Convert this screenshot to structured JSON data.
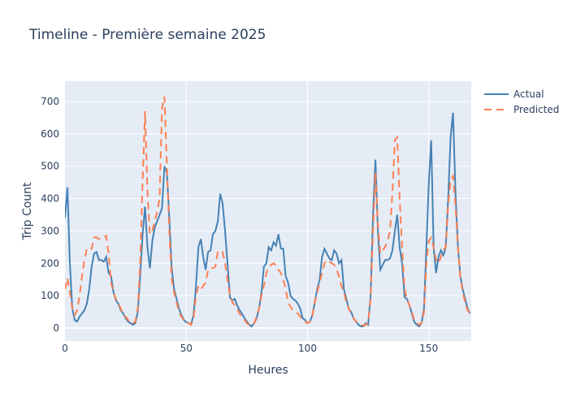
{
  "title": "Timeline - Première semaine 2025",
  "legend": {
    "items": [
      {
        "label": "Actual",
        "color": "#4682b4",
        "dash": "solid"
      },
      {
        "label": "Predicted",
        "color": "#ff7f50",
        "dash": "dash"
      }
    ]
  },
  "axes": {
    "x": {
      "title": "Heures",
      "ticks": [
        0,
        50,
        100,
        150
      ],
      "range": [
        0,
        167
      ]
    },
    "y": {
      "title": "Trip Count",
      "ticks": [
        0,
        100,
        200,
        300,
        400,
        500,
        600,
        700
      ],
      "range": [
        -40,
        765
      ]
    }
  },
  "colors": {
    "plot_bg": "#e5ecf6",
    "grid": "#ffffff",
    "text": "#2a3f5f"
  },
  "chart_data": {
    "type": "line",
    "title": "Timeline - Première semaine 2025",
    "xlabel": "Heures",
    "ylabel": "Trip Count",
    "xlim": [
      0,
      167
    ],
    "ylim": [
      -40,
      765
    ],
    "grid": true,
    "legend_position": "right-top",
    "x": "0..167 (hourly)",
    "series": [
      {
        "name": "Actual",
        "color": "#4682b4",
        "style": "solid",
        "values": [
          340,
          435,
          200,
          60,
          25,
          20,
          35,
          45,
          55,
          75,
          120,
          190,
          230,
          235,
          210,
          210,
          205,
          220,
          170,
          160,
          110,
          85,
          75,
          55,
          45,
          30,
          20,
          15,
          10,
          15,
          50,
          160,
          290,
          375,
          250,
          185,
          270,
          310,
          330,
          350,
          370,
          500,
          480,
          340,
          185,
          120,
          90,
          60,
          40,
          25,
          18,
          15,
          12,
          40,
          130,
          250,
          275,
          220,
          180,
          235,
          240,
          290,
          300,
          330,
          415,
          385,
          300,
          200,
          95,
          85,
          90,
          70,
          55,
          45,
          30,
          20,
          10,
          5,
          15,
          30,
          60,
          110,
          190,
          200,
          250,
          240,
          265,
          255,
          290,
          245,
          245,
          160,
          140,
          100,
          90,
          85,
          75,
          60,
          30,
          25,
          15,
          20,
          40,
          80,
          120,
          150,
          220,
          245,
          230,
          215,
          210,
          240,
          230,
          200,
          210,
          120,
          90,
          60,
          50,
          30,
          20,
          10,
          5,
          5,
          15,
          10,
          100,
          350,
          520,
          300,
          180,
          195,
          210,
          210,
          215,
          240,
          300,
          350,
          250,
          200,
          95,
          90,
          70,
          45,
          20,
          10,
          5,
          15,
          60,
          250,
          450,
          580,
          250,
          170,
          220,
          240,
          225,
          250,
          400,
          590,
          665,
          420,
          250,
          160,
          120,
          90,
          60,
          45
        ]
      },
      {
        "name": "Predicted",
        "color": "#ff7f50",
        "style": "dash",
        "values": [
          120,
          155,
          110,
          60,
          40,
          55,
          100,
          160,
          210,
          245,
          250,
          245,
          280,
          280,
          275,
          275,
          280,
          285,
          230,
          140,
          110,
          90,
          75,
          60,
          40,
          35,
          25,
          15,
          15,
          20,
          60,
          200,
          450,
          670,
          420,
          290,
          300,
          330,
          360,
          400,
          680,
          715,
          500,
          300,
          150,
          110,
          80,
          50,
          35,
          25,
          20,
          15,
          10,
          30,
          100,
          130,
          120,
          130,
          140,
          180,
          185,
          185,
          190,
          235,
          240,
          235,
          200,
          150,
          100,
          80,
          70,
          60,
          45,
          35,
          25,
          15,
          10,
          8,
          15,
          35,
          60,
          100,
          130,
          170,
          190,
          195,
          200,
          195,
          180,
          170,
          150,
          120,
          80,
          65,
          55,
          50,
          45,
          35,
          25,
          20,
          15,
          20,
          40,
          80,
          110,
          140,
          170,
          200,
          210,
          205,
          200,
          195,
          180,
          160,
          130,
          110,
          80,
          60,
          45,
          30,
          20,
          15,
          10,
          8,
          10,
          15,
          90,
          300,
          480,
          320,
          230,
          240,
          250,
          270,
          300,
          420,
          580,
          590,
          400,
          250,
          120,
          90,
          70,
          50,
          25,
          15,
          10,
          15,
          50,
          200,
          270,
          280,
          250,
          210,
          200,
          220,
          240,
          250,
          380,
          460,
          470,
          380,
          250,
          160,
          110,
          80,
          55,
          45
        ]
      }
    ]
  }
}
